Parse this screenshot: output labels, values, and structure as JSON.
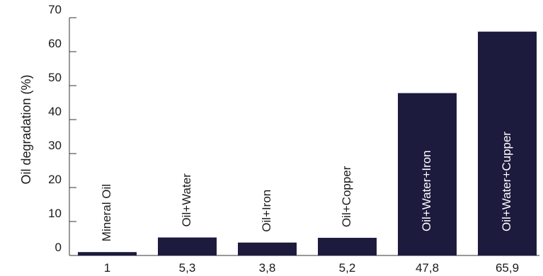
{
  "chart_data": {
    "type": "bar",
    "title": "",
    "xlabel": "",
    "ylabel": "Oil degradation (%)",
    "ylim": [
      0,
      70
    ],
    "yticks": [
      0,
      10,
      20,
      30,
      40,
      50,
      60,
      70
    ],
    "grid": false,
    "categories": [
      "Mineral Oil",
      "Oil+Water",
      "Oil+Iron",
      "Oil+Copper",
      "Oil+Water+Iron",
      "Oil+Water+Cupper"
    ],
    "values": [
      1,
      5.3,
      3.8,
      5.2,
      47.8,
      65.9
    ],
    "value_labels": [
      "1",
      "5,3",
      "3,8",
      "5,2",
      "47,8",
      "65,9"
    ],
    "colors": {
      "bar": "#1c1a3d",
      "axis": "#333333",
      "label_on_bar": "#ffffff",
      "label_above_bar": "#1a1a1a"
    }
  }
}
